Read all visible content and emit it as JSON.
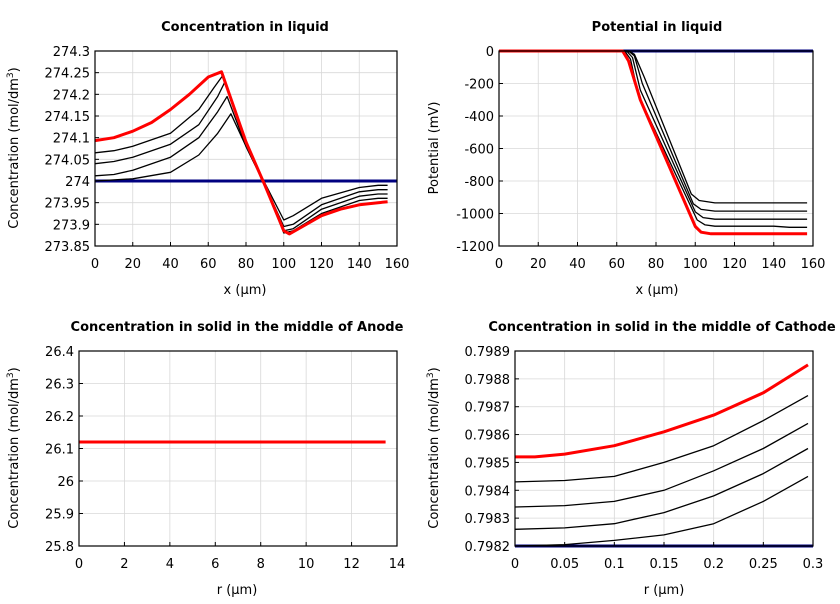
{
  "chart_data": [
    {
      "type": "line",
      "title": "Concentration in liquid",
      "xlabel": "x (µm)",
      "ylabel": "Concentration (mol/dm",
      "ylabel_sup": "3",
      "ylabel_tail": ")",
      "xlim": [
        0,
        160
      ],
      "ylim": [
        273.85,
        274.3
      ],
      "xticks": [
        "0",
        "20",
        "40",
        "60",
        "80",
        "100",
        "120",
        "140",
        "160"
      ],
      "xtick_values": [
        0,
        20,
        40,
        60,
        80,
        100,
        120,
        140,
        160
      ],
      "yticks": [
        "274.3",
        "274.25",
        "274.2",
        "274.15",
        "274.1",
        "274.05",
        "274",
        "273.95",
        "273.9",
        "273.85"
      ],
      "ytick_values": [
        274.3,
        274.25,
        274.2,
        274.15,
        274.1,
        274.05,
        274.0,
        273.95,
        273.9,
        273.85
      ],
      "grid": true,
      "series": [
        {
          "color": "#000080",
          "width": 3,
          "x": [
            0,
            160
          ],
          "y": [
            274.0,
            274.0
          ]
        },
        {
          "color": "#000000",
          "width": 1.3,
          "x": [
            0,
            20,
            40,
            55,
            65,
            72,
            80,
            90,
            100,
            105,
            120,
            140,
            150,
            155
          ],
          "y": [
            274.0,
            274.005,
            274.02,
            274.06,
            274.11,
            274.155,
            274.08,
            273.995,
            273.91,
            273.92,
            273.96,
            273.985,
            273.99,
            273.99
          ]
        },
        {
          "color": "#000000",
          "width": 1.3,
          "x": [
            0,
            10,
            20,
            40,
            55,
            65,
            70,
            80,
            90,
            100,
            105,
            120,
            140,
            150,
            155
          ],
          "y": [
            274.012,
            274.015,
            274.025,
            274.055,
            274.1,
            274.16,
            274.195,
            274.08,
            273.99,
            273.895,
            273.9,
            273.945,
            273.975,
            273.98,
            273.98
          ]
        },
        {
          "color": "#000000",
          "width": 1.3,
          "x": [
            0,
            10,
            20,
            40,
            55,
            65,
            69,
            80,
            90,
            100,
            105,
            120,
            140,
            150,
            155
          ],
          "y": [
            274.04,
            274.045,
            274.055,
            274.085,
            274.13,
            274.195,
            274.23,
            274.08,
            273.99,
            273.885,
            273.89,
            273.935,
            273.965,
            273.97,
            273.97
          ]
        },
        {
          "color": "#000000",
          "width": 1.3,
          "x": [
            0,
            10,
            20,
            40,
            55,
            63,
            68,
            80,
            90,
            100,
            105,
            120,
            140,
            150,
            155
          ],
          "y": [
            274.065,
            274.07,
            274.08,
            274.11,
            274.165,
            274.215,
            274.245,
            274.085,
            273.99,
            273.88,
            273.885,
            273.925,
            273.955,
            273.96,
            273.96
          ]
        },
        {
          "color": "#ff0000",
          "width": 3,
          "x": [
            0,
            10,
            20,
            30,
            40,
            50,
            60,
            67,
            80,
            90,
            100,
            103,
            110,
            120,
            130,
            140,
            150,
            155
          ],
          "y": [
            274.093,
            274.1,
            274.115,
            274.135,
            274.165,
            274.2,
            274.24,
            274.252,
            274.09,
            273.99,
            273.885,
            273.878,
            273.895,
            273.92,
            273.935,
            273.945,
            273.95,
            273.952
          ]
        }
      ]
    },
    {
      "type": "line",
      "title": "Potential in liquid",
      "xlabel": "x (µm)",
      "ylabel": "Potential (mV)",
      "xlim": [
        0,
        160
      ],
      "ylim": [
        -1200,
        0
      ],
      "xticks": [
        "0",
        "20",
        "40",
        "60",
        "80",
        "100",
        "120",
        "140",
        "160"
      ],
      "xtick_values": [
        0,
        20,
        40,
        60,
        80,
        100,
        120,
        140,
        160
      ],
      "yticks": [
        "0",
        "-200",
        "-400",
        "-600",
        "-800",
        "-1000",
        "-1200"
      ],
      "ytick_values": [
        0,
        -200,
        -400,
        -600,
        -800,
        -1000,
        -1200
      ],
      "grid": true,
      "series": [
        {
          "color": "#000080",
          "width": 3,
          "x": [
            0,
            160
          ],
          "y": [
            0,
            0
          ]
        },
        {
          "color": "#000000",
          "width": 1.3,
          "x": [
            0,
            66,
            69,
            74,
            98,
            102,
            110,
            140,
            157
          ],
          "y": [
            0,
            0,
            -20,
            -160,
            -880,
            -920,
            -935,
            -935,
            -935
          ]
        },
        {
          "color": "#000000",
          "width": 1.3,
          "x": [
            0,
            66,
            69,
            73,
            99,
            103,
            110,
            140,
            157
          ],
          "y": [
            0,
            0,
            -30,
            -200,
            -940,
            -975,
            -985,
            -985,
            -985
          ]
        },
        {
          "color": "#000000",
          "width": 1.3,
          "x": [
            0,
            65,
            68,
            72,
            100,
            104,
            110,
            140,
            157
          ],
          "y": [
            0,
            0,
            -40,
            -240,
            -990,
            -1025,
            -1035,
            -1035,
            -1035
          ]
        },
        {
          "color": "#000000",
          "width": 1.3,
          "x": [
            0,
            64,
            67,
            71,
            101,
            105,
            110,
            140,
            148,
            157
          ],
          "y": [
            0,
            0,
            -50,
            -270,
            -1040,
            -1070,
            -1078,
            -1078,
            -1085,
            -1085
          ]
        },
        {
          "color": "#ff0000",
          "width": 3,
          "x": [
            0,
            63,
            66,
            70,
            72,
            100,
            103,
            108,
            140,
            157
          ],
          "y": [
            0,
            0,
            -60,
            -220,
            -300,
            -1080,
            -1115,
            -1125,
            -1125,
            -1125
          ]
        }
      ]
    },
    {
      "type": "line",
      "title": "Concentration in solid in the middle of Anode",
      "xlabel": "r (µm)",
      "ylabel": "Concentration (mol/dm",
      "ylabel_sup": "3",
      "ylabel_tail": ")",
      "xlim": [
        0,
        14
      ],
      "ylim": [
        25.8,
        26.4
      ],
      "xticks": [
        "0",
        "2",
        "4",
        "6",
        "8",
        "10",
        "12",
        "14"
      ],
      "xtick_values": [
        0,
        2,
        4,
        6,
        8,
        10,
        12,
        14
      ],
      "yticks": [
        "26.4",
        "26.3",
        "26.2",
        "26.1",
        "26",
        "25.9",
        "25.8"
      ],
      "ytick_values": [
        26.4,
        26.3,
        26.2,
        26.1,
        26.0,
        25.9,
        25.8
      ],
      "grid": true,
      "series": [
        {
          "color": "#ff0000",
          "width": 3,
          "x": [
            0,
            13.5
          ],
          "y": [
            26.12,
            26.12
          ]
        }
      ]
    },
    {
      "type": "line",
      "title": "Concentration in solid in the middle of Cathode",
      "xlabel": "r (µm)",
      "ylabel": "Concentration (mol/dm",
      "ylabel_sup": "3",
      "ylabel_tail": ")",
      "xlim": [
        0,
        0.3
      ],
      "ylim": [
        0.7982,
        0.7989
      ],
      "xticks": [
        "0",
        "0.05",
        "0.1",
        "0.15",
        "0.2",
        "0.25",
        "0.3"
      ],
      "xtick_values": [
        0,
        0.05,
        0.1,
        0.15,
        0.2,
        0.25,
        0.3
      ],
      "yticks": [
        "0.7989",
        "0.7988",
        "0.7987",
        "0.7986",
        "0.7985",
        "0.7984",
        "0.7983",
        "0.7982"
      ],
      "ytick_values": [
        0.7989,
        0.7988,
        0.7987,
        0.7986,
        0.7985,
        0.7984,
        0.7983,
        0.7982
      ],
      "grid": true,
      "series": [
        {
          "color": "#000080",
          "width": 3,
          "x": [
            0,
            0.3
          ],
          "y": [
            0.7982,
            0.7982
          ]
        },
        {
          "color": "#000000",
          "width": 1.3,
          "x": [
            0,
            0.05,
            0.1,
            0.15,
            0.2,
            0.25,
            0.295
          ],
          "y": [
            0.7982,
            0.798205,
            0.79822,
            0.79824,
            0.79828,
            0.79836,
            0.79845
          ]
        },
        {
          "color": "#000000",
          "width": 1.3,
          "x": [
            0,
            0.05,
            0.1,
            0.15,
            0.2,
            0.25,
            0.295
          ],
          "y": [
            0.79826,
            0.798265,
            0.79828,
            0.79832,
            0.79838,
            0.79846,
            0.79855
          ]
        },
        {
          "color": "#000000",
          "width": 1.3,
          "x": [
            0,
            0.05,
            0.1,
            0.15,
            0.2,
            0.25,
            0.295
          ],
          "y": [
            0.79834,
            0.798345,
            0.79836,
            0.7984,
            0.79847,
            0.79855,
            0.79864
          ]
        },
        {
          "color": "#000000",
          "width": 1.3,
          "x": [
            0,
            0.05,
            0.1,
            0.15,
            0.2,
            0.25,
            0.295
          ],
          "y": [
            0.79843,
            0.798435,
            0.79845,
            0.7985,
            0.79856,
            0.79865,
            0.79874
          ]
        },
        {
          "color": "#ff0000",
          "width": 3,
          "x": [
            0,
            0.02,
            0.05,
            0.1,
            0.15,
            0.2,
            0.25,
            0.295
          ],
          "y": [
            0.79852,
            0.79852,
            0.79853,
            0.79856,
            0.79861,
            0.79867,
            0.79875,
            0.79885
          ]
        }
      ]
    }
  ]
}
